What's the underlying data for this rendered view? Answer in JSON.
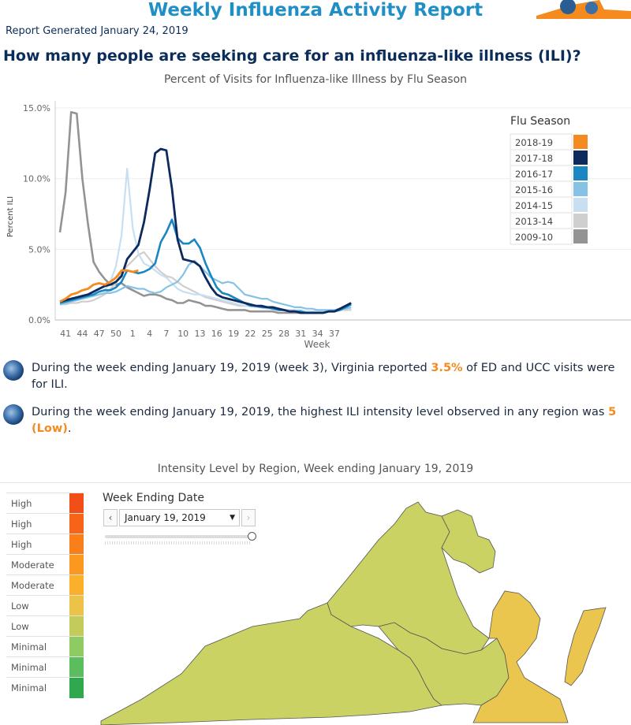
{
  "header": {
    "title": "Weekly Influenza Activity Report",
    "report_date": "Report Generated January 24, 2019",
    "question": "How many people are seeking care for an influenza-like illness (ILI)?"
  },
  "chart_data": {
    "type": "line",
    "title": "Percent of Visits for Influenza-like Illness by Flu Season",
    "xlabel": "Week",
    "ylabel": "Percent ILI",
    "x_ticks": [
      "41",
      "44",
      "47",
      "50",
      "1",
      "4",
      "7",
      "10",
      "13",
      "16",
      "19",
      "22",
      "25",
      "28",
      "31",
      "34",
      "37"
    ],
    "y_ticks": [
      "0.0%",
      "5.0%",
      "10.0%",
      "15.0%"
    ],
    "ylim": [
      0,
      15.5
    ],
    "legend_title": "Flu Season",
    "legend_position": "top-right",
    "series": [
      {
        "name": "2009-10",
        "color": "#939393",
        "width": 2.6,
        "values": [
          6.2,
          9.0,
          14.7,
          14.6,
          10.0,
          6.8,
          4.1,
          3.4,
          2.9,
          2.5,
          2.5,
          2.6,
          2.3,
          2.1,
          1.9,
          1.7,
          1.8,
          1.8,
          1.7,
          1.5,
          1.4,
          1.2,
          1.2,
          1.4,
          1.3,
          1.2,
          1.0,
          1.0,
          0.9,
          0.8,
          0.7,
          0.7,
          0.7,
          0.7,
          0.6,
          0.6,
          0.6,
          0.6,
          0.6,
          0.5,
          0.5,
          0.5,
          0.5,
          0.5,
          0.5,
          0.5,
          0.5,
          0.6,
          0.6,
          0.6,
          0.7,
          0.8,
          0.7
        ]
      },
      {
        "name": "2013-14",
        "color": "#cfcfcf",
        "width": 2.2,
        "values": [
          1.1,
          1.1,
          1.2,
          1.2,
          1.3,
          1.3,
          1.4,
          1.6,
          1.8,
          2.2,
          2.6,
          3.4,
          3.8,
          4.2,
          4.6,
          4.8,
          4.3,
          3.8,
          3.4,
          3.1,
          3.0,
          2.7,
          2.4,
          2.2,
          2.0,
          1.8,
          1.6,
          1.5,
          1.4,
          1.3,
          1.2,
          1.1,
          1.0,
          1.0,
          1.0,
          0.9,
          0.9,
          0.8,
          0.8,
          0.8,
          0.7,
          0.7,
          0.7,
          0.6,
          0.6,
          0.6,
          0.6,
          0.6,
          0.6,
          0.6,
          0.7,
          0.7,
          0.7
        ]
      },
      {
        "name": "2014-15",
        "color": "#c7dff0",
        "width": 2.2,
        "values": [
          1.1,
          1.2,
          1.3,
          1.4,
          1.5,
          1.6,
          1.8,
          2.0,
          2.1,
          2.7,
          3.8,
          6.0,
          10.7,
          6.5,
          4.7,
          4.0,
          3.8,
          3.5,
          3.2,
          3.0,
          2.6,
          2.2,
          2.0,
          1.9,
          1.8,
          1.8,
          1.7,
          1.6,
          1.5,
          1.4,
          1.3,
          1.2,
          1.1,
          1.0,
          1.0,
          0.9,
          0.9,
          0.8,
          0.8,
          0.8,
          0.7,
          0.7,
          0.7,
          0.7,
          0.6,
          0.6,
          0.6,
          0.6,
          0.6,
          0.7,
          0.7,
          0.8,
          0.8
        ]
      },
      {
        "name": "2015-16",
        "color": "#86c2e6",
        "width": 2.2,
        "values": [
          1.1,
          1.2,
          1.3,
          1.4,
          1.5,
          1.6,
          1.7,
          1.8,
          1.9,
          1.9,
          2.0,
          2.2,
          2.4,
          2.3,
          2.2,
          2.2,
          2.0,
          1.9,
          2.0,
          2.3,
          2.5,
          2.7,
          3.2,
          3.9,
          4.2,
          3.8,
          3.4,
          3.0,
          2.8,
          2.6,
          2.7,
          2.6,
          2.2,
          1.8,
          1.7,
          1.6,
          1.5,
          1.5,
          1.3,
          1.2,
          1.1,
          1.0,
          0.9,
          0.9,
          0.8,
          0.8,
          0.7,
          0.7,
          0.7,
          0.7,
          0.8,
          0.8,
          0.9
        ]
      },
      {
        "name": "2016-17",
        "color": "#1a86c2",
        "width": 2.6,
        "values": [
          1.2,
          1.3,
          1.4,
          1.5,
          1.6,
          1.7,
          1.8,
          2.0,
          2.1,
          2.1,
          2.3,
          2.7,
          3.5,
          3.4,
          3.3,
          3.4,
          3.6,
          4.0,
          5.5,
          6.2,
          7.1,
          5.8,
          5.4,
          5.4,
          5.7,
          5.1,
          4.0,
          3.1,
          2.3,
          1.9,
          1.8,
          1.6,
          1.4,
          1.2,
          1.0,
          1.0,
          0.9,
          0.9,
          0.8,
          0.7,
          0.7,
          0.6,
          0.6,
          0.6,
          0.5,
          0.5,
          0.5,
          0.5,
          0.6,
          0.6,
          0.7,
          0.9,
          1.1
        ]
      },
      {
        "name": "2017-18",
        "color": "#0c2a5e",
        "width": 2.8,
        "values": [
          1.3,
          1.4,
          1.5,
          1.6,
          1.7,
          1.8,
          2.0,
          2.2,
          2.4,
          2.5,
          2.7,
          3.1,
          4.3,
          4.8,
          5.3,
          6.9,
          9.2,
          11.8,
          12.1,
          12.0,
          9.3,
          5.7,
          4.3,
          4.2,
          4.1,
          3.8,
          3.0,
          2.3,
          1.8,
          1.6,
          1.5,
          1.4,
          1.3,
          1.2,
          1.1,
          1.0,
          1.0,
          0.9,
          0.9,
          0.8,
          0.7,
          0.6,
          0.6,
          0.5,
          0.5,
          0.5,
          0.5,
          0.5,
          0.6,
          0.6,
          0.8,
          1.0,
          1.2
        ]
      },
      {
        "name": "2018-19",
        "color": "#f58a1f",
        "width": 2.8,
        "values": [
          1.3,
          1.5,
          1.8,
          1.9,
          2.1,
          2.2,
          2.5,
          2.6,
          2.5,
          2.7,
          3.0,
          3.5,
          3.5,
          3.4,
          3.5
        ]
      }
    ]
  },
  "bullets": [
    {
      "pre": "During the week ending January 19, 2019 (week 3), Virginia reported ",
      "hl": "3.5%",
      "post": " of ED and UCC visits were for ILI."
    },
    {
      "pre": "During the week ending January 19, 2019, the highest ILI intensity level observed in any region was ",
      "hl": "5 (Low)",
      "post": "."
    }
  ],
  "map": {
    "title": "Intensity Level by Region, Week ending January 19, 2019",
    "week_label": "Week Ending Date",
    "selected_date": "January 19, 2019",
    "prev_icon": "‹",
    "next_icon": "›",
    "dropdown_icon": "▼",
    "region_colors": {
      "low_green": "#c9d263",
      "low_yellow": "#ebc64f"
    },
    "legend": [
      {
        "label": "High",
        "color": "#f24e17"
      },
      {
        "label": "High",
        "color": "#f76418"
      },
      {
        "label": "High",
        "color": "#fa7f1b"
      },
      {
        "label": "Moderate",
        "color": "#fb981f"
      },
      {
        "label": "Moderate",
        "color": "#fab02a"
      },
      {
        "label": "Low",
        "color": "#ecc348"
      },
      {
        "label": "Low",
        "color": "#c3cc5a"
      },
      {
        "label": "Minimal",
        "color": "#8fcb63"
      },
      {
        "label": "Minimal",
        "color": "#5bbd5e"
      },
      {
        "label": "Minimal",
        "color": "#30a84e"
      }
    ]
  }
}
